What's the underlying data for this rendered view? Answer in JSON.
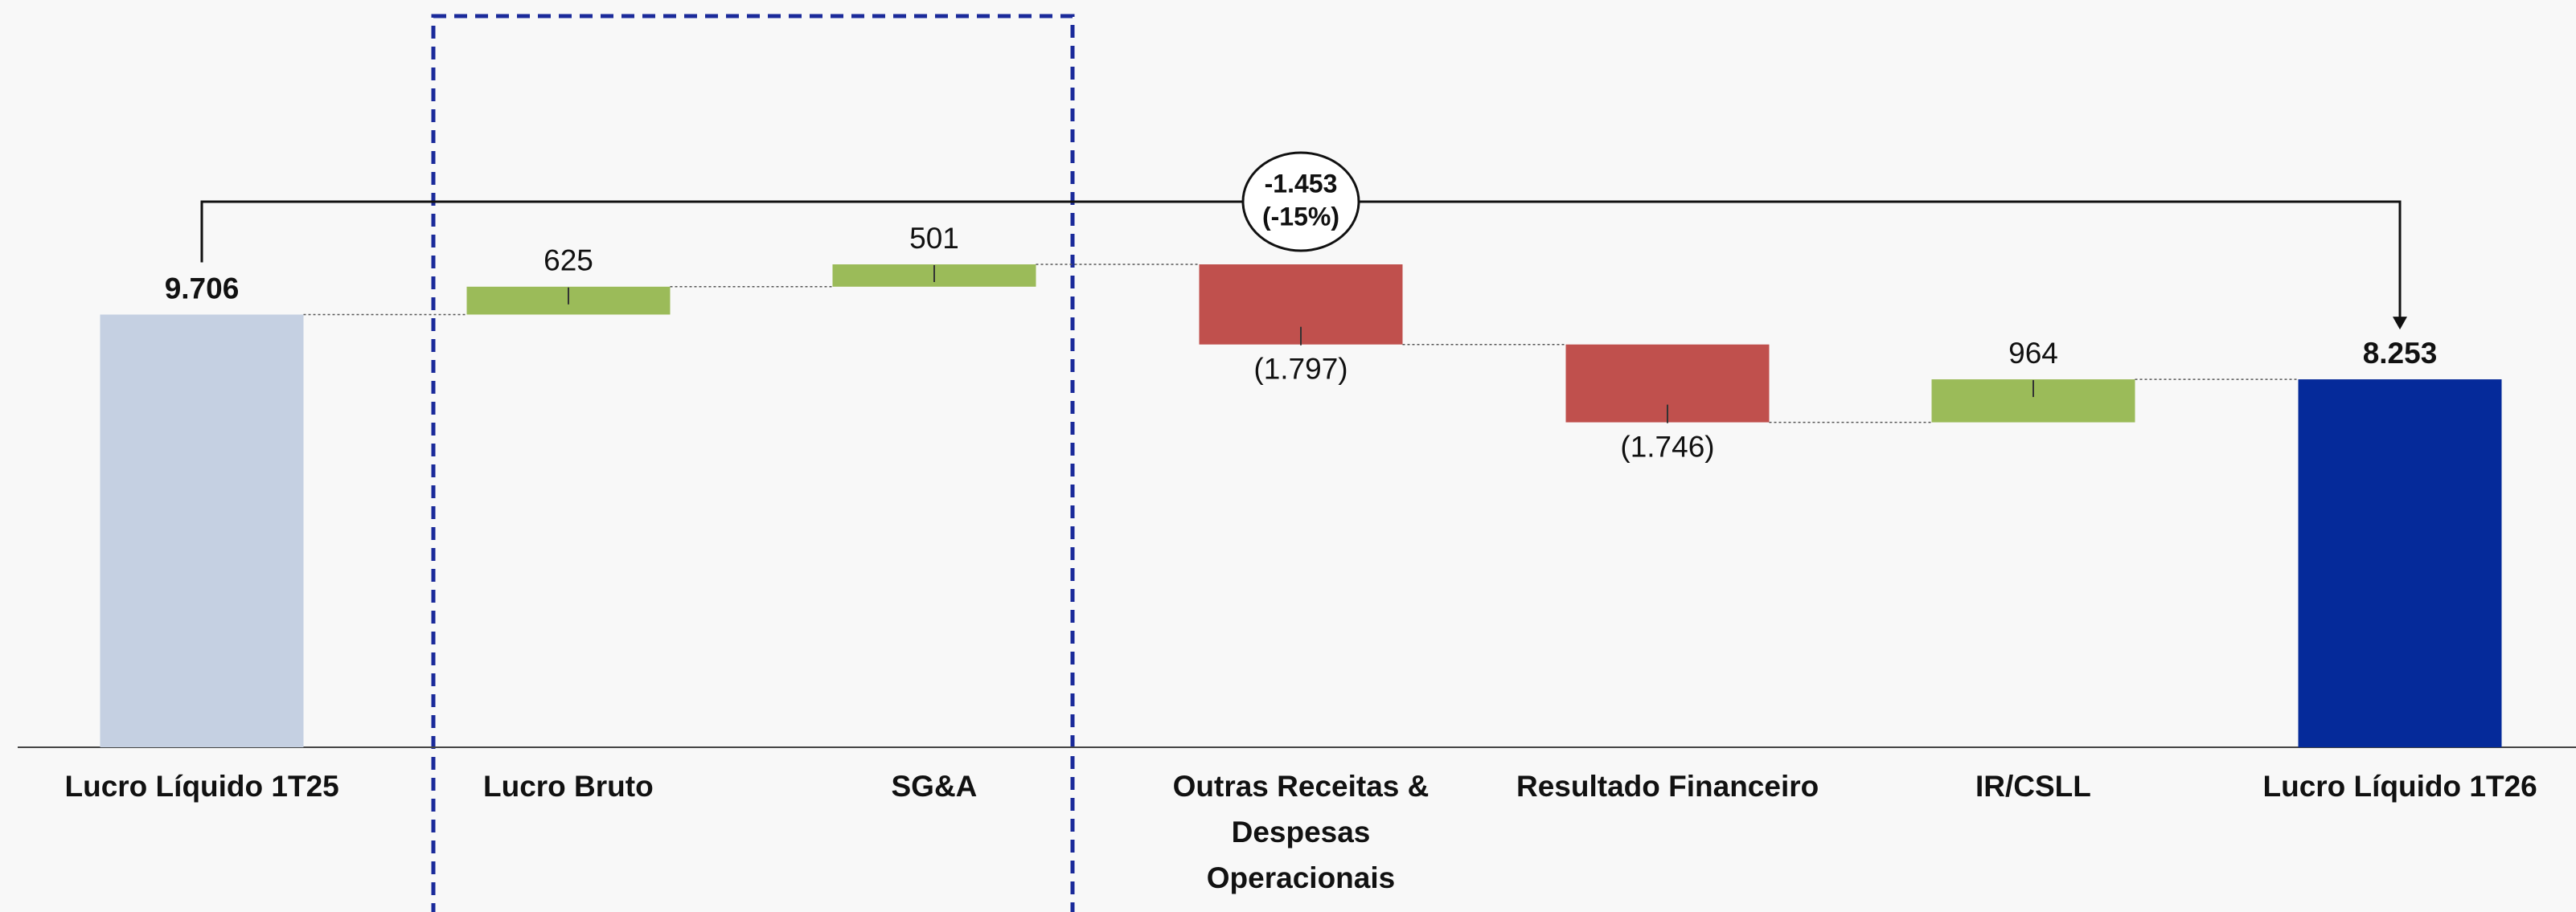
{
  "chart_data": {
    "type": "waterfall",
    "categories": [
      "Lucro Líquido 1T25",
      "Lucro Bruto",
      "SG&A",
      "Outras Receitas & Despesas Operacionais",
      "Resultado Financeiro",
      "IR/CSLL",
      "Lucro Líquido 1T26"
    ],
    "values": [
      9706,
      625,
      501,
      -1797,
      -1746,
      964,
      8253
    ],
    "value_labels": [
      "9.706",
      "625",
      "501",
      "(1.797)",
      "(1.746)",
      "964",
      "8.253"
    ],
    "measure": [
      "absolute",
      "relative",
      "relative",
      "relative",
      "relative",
      "relative",
      "absolute"
    ],
    "colors": {
      "start": "#c5d0e2",
      "end": "#052a9a",
      "increase": "#9bbb59",
      "decrease": "#c0504d"
    },
    "annotations": [
      {
        "value": -1453,
        "label": "-1.453"
      },
      {
        "value": -15,
        "label": "(-15%)"
      }
    ]
  }
}
